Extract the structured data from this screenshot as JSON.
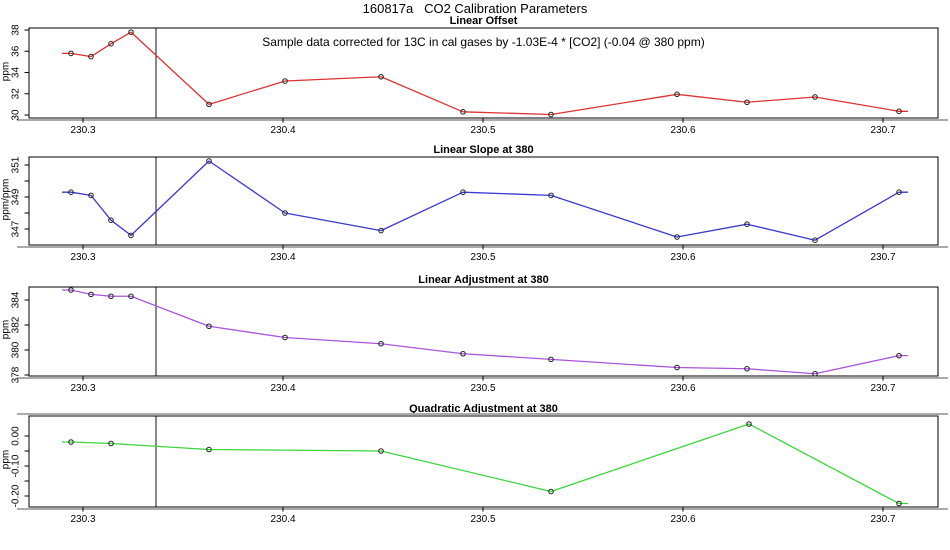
{
  "page_title": "160817a   CO2 Calibration Parameters",
  "vline_x": 230.3365,
  "axis": {
    "xlim": [
      230.273,
      230.7275
    ],
    "xticks": [
      230.3,
      230.4,
      230.5,
      230.6,
      230.7
    ],
    "xtick_labels": [
      "230.3",
      "230.4",
      "230.5",
      "230.6",
      "230.7"
    ]
  },
  "colors": {
    "offset_line": "#dd3333",
    "slope_line": "#3a3ad0",
    "linear_adj_line": "#aa55dd",
    "quad_adj_line": "#3bd63b",
    "marker_outline": "#222222",
    "vline": "#111111",
    "frame": "#000000",
    "panel_shadow": "#aaaaaa"
  },
  "chart_data": [
    {
      "type": "line",
      "title": "Linear Offset",
      "ylabel": "ppm",
      "annotation": "Sample data corrected for 13C in cal gases by -1.03E-4 * [CO2] (-0.04 @ 380 ppm)",
      "color_key": "offset_line",
      "ylim": [
        29.72,
        38.19
      ],
      "yticks": [
        30,
        32,
        34,
        36,
        38
      ],
      "ytick_labels": [
        "30",
        "32",
        "34",
        "36",
        "38"
      ],
      "x": [
        230.294,
        230.304,
        230.314,
        230.324,
        230.363,
        230.401,
        230.449,
        230.49,
        230.534,
        230.597,
        230.632,
        230.666,
        230.708
      ],
      "y": [
        35.8,
        35.5,
        36.7,
        37.8,
        31.0,
        33.2,
        33.6,
        30.3,
        30.05,
        31.95,
        31.2,
        31.7,
        30.35
      ]
    },
    {
      "type": "line",
      "title": "Linear Slope at 380",
      "ylabel": "ppm/ppm",
      "annotation": "",
      "color_key": "slope_line",
      "ylim": [
        346.0,
        351.5
      ],
      "yticks": [
        347,
        348,
        349,
        350,
        351
      ],
      "ytick_labels": [
        "347",
        "",
        "349",
        "",
        "351"
      ],
      "x": [
        230.294,
        230.304,
        230.314,
        230.324,
        230.363,
        230.401,
        230.449,
        230.49,
        230.534,
        230.597,
        230.632,
        230.666,
        230.708
      ],
      "y": [
        349.3,
        349.1,
        347.55,
        346.6,
        351.25,
        348.0,
        346.9,
        349.3,
        349.1,
        346.5,
        347.3,
        346.3,
        349.3
      ]
    },
    {
      "type": "line",
      "title": "Linear Adjustment at 380",
      "ylabel": "ppm",
      "annotation": "",
      "color_key": "linear_adj_line",
      "ylim": [
        377.92,
        385.04
      ],
      "yticks": [
        378,
        380,
        382,
        384
      ],
      "ytick_labels": [
        "378",
        "380",
        "382",
        "384"
      ],
      "x": [
        230.294,
        230.304,
        230.314,
        230.324,
        230.363,
        230.401,
        230.449,
        230.49,
        230.534,
        230.597,
        230.632,
        230.666,
        230.708
      ],
      "y": [
        384.8,
        384.45,
        384.3,
        384.3,
        381.9,
        381.0,
        380.5,
        379.7,
        379.25,
        378.6,
        378.5,
        378.1,
        379.55
      ]
    },
    {
      "type": "line",
      "title": "Quadratic Adjustment at 380",
      "ylabel": "ppm",
      "annotation": "",
      "color_key": "quad_adj_line",
      "ylim": [
        -0.2367,
        0.0667
      ],
      "yticks": [
        -0.2,
        -0.15,
        -0.1,
        -0.05,
        0.0
      ],
      "ytick_labels": [
        "-0.20",
        "",
        "-0.10",
        "",
        "0.00"
      ],
      "x": [
        230.294,
        230.314,
        230.363,
        230.449,
        230.534,
        230.633,
        230.708
      ],
      "y": [
        -0.02,
        -0.025,
        -0.045,
        -0.05,
        -0.185,
        0.04,
        -0.225
      ]
    }
  ]
}
